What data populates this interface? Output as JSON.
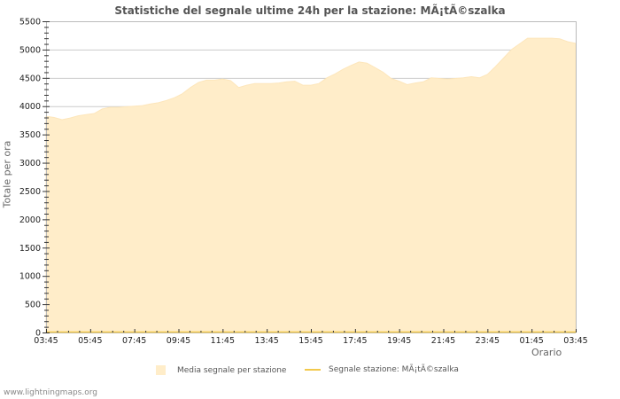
{
  "page": {
    "title": "Statistiche del segnale ultime 24h per la stazione: MÃ¡tÃ©szalka",
    "y_axis_label": "Totale per ora",
    "x_axis_label": "Orario",
    "footer": "www.lightningmaps.org",
    "legend": [
      {
        "label": "Media segnale per stazione",
        "type": "area",
        "color": "#ffedc9"
      },
      {
        "label": "Segnale stazione: MÃ¡tÃ©szalka",
        "type": "line",
        "color": "#f2c94c"
      }
    ]
  },
  "chart_data": {
    "type": "area",
    "title": "Statistiche del segnale ultime 24h per la stazione: MÃ¡tÃ©szalka",
    "xlabel": "Orario",
    "ylabel": "Totale per ora",
    "ylim": [
      0,
      5500
    ],
    "yticks": [
      0,
      500,
      1000,
      1500,
      2000,
      2500,
      3000,
      3500,
      4000,
      4500,
      5000,
      5500
    ],
    "xticks": [
      "03:45",
      "05:45",
      "07:45",
      "09:45",
      "11:45",
      "13:45",
      "15:45",
      "17:45",
      "19:45",
      "21:45",
      "23:45",
      "01:45",
      "03:45"
    ],
    "grid": "horizontal",
    "legend_position": "bottom",
    "colors": {
      "area_fill": "#ffedc9",
      "area_edge": "#fde7bd",
      "grid": "#cccccc",
      "axis": "#bbbbbb",
      "baseline": "#f2c94c"
    },
    "series": [
      {
        "name": "Media segnale per stazione",
        "type": "area",
        "x_step_minutes": 30,
        "x_start": "03:45",
        "values": [
          3820,
          3800,
          3760,
          3790,
          3830,
          3850,
          3870,
          3950,
          3980,
          3980,
          3990,
          4000,
          4010,
          4040,
          4060,
          4100,
          4150,
          4220,
          4330,
          4420,
          4460,
          4460,
          4480,
          4450,
          4330,
          4370,
          4400,
          4400,
          4400,
          4410,
          4430,
          4440,
          4370,
          4370,
          4400,
          4500,
          4570,
          4650,
          4720,
          4780,
          4760,
          4680,
          4600,
          4490,
          4440,
          4380,
          4410,
          4430,
          4500,
          4490,
          4480,
          4490,
          4500,
          4520,
          4500,
          4560,
          4700,
          4850,
          5000,
          5100,
          5200,
          5200,
          5200,
          5200,
          5190,
          5140,
          5110
        ]
      },
      {
        "name": "Segnale stazione: MÃ¡tÃ©szalka",
        "type": "line",
        "values": []
      }
    ]
  }
}
